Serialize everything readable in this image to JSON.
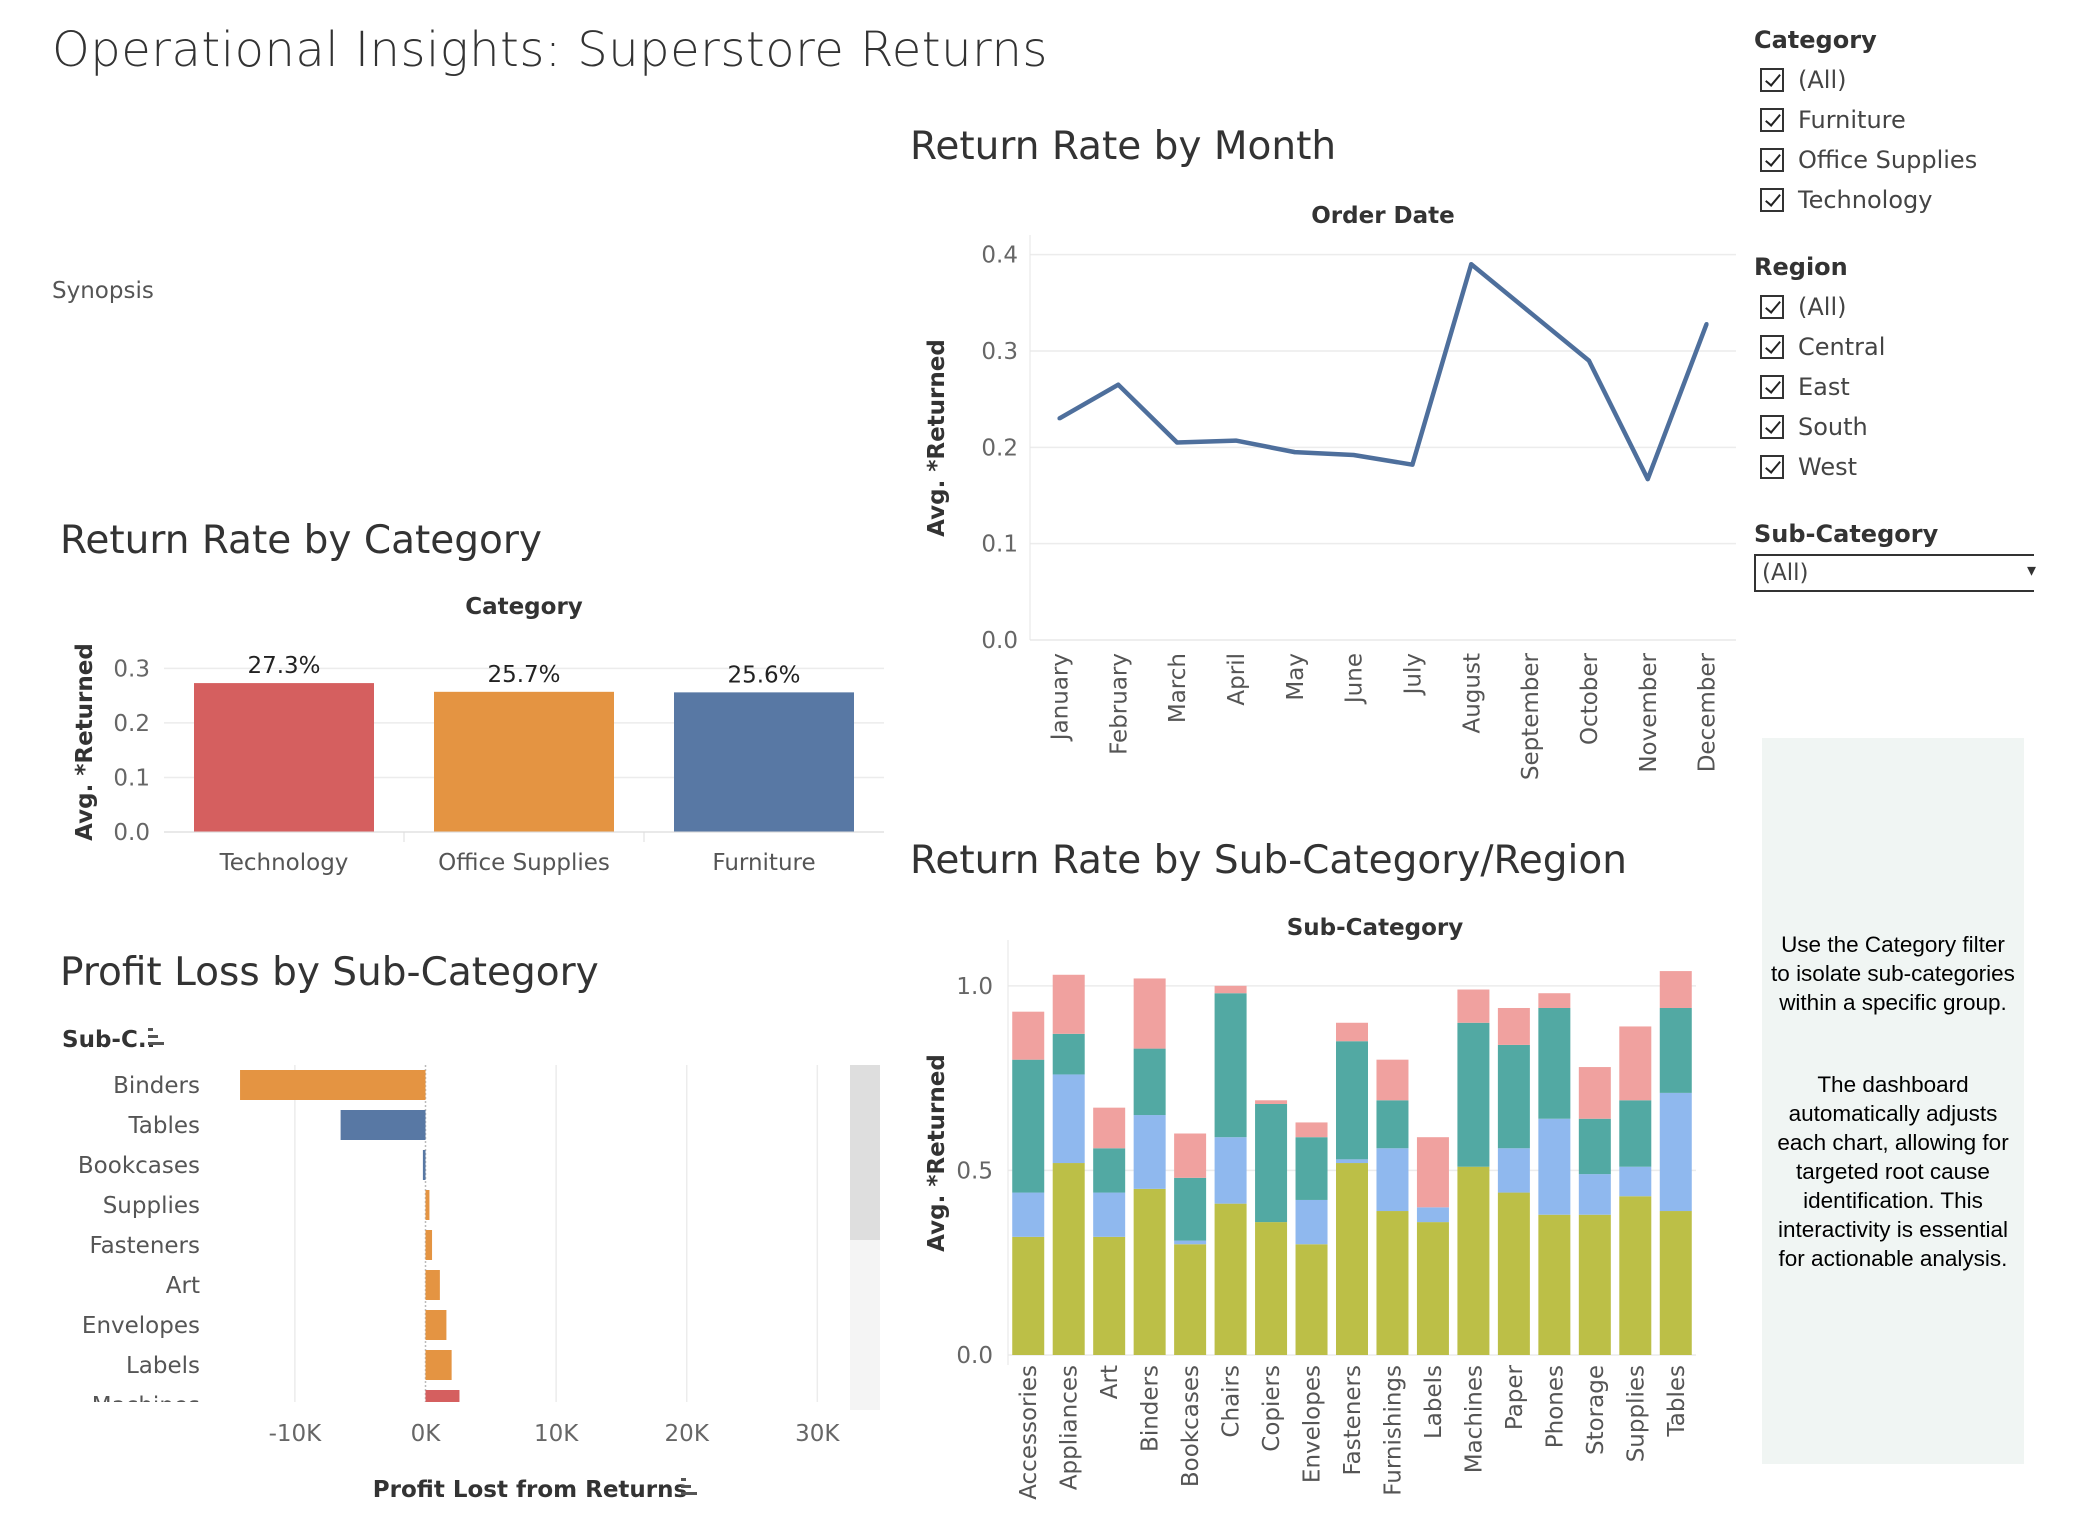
{
  "dashboard": {
    "title": "Operational Insights: Superstore Returns",
    "synopsis_label": "Synopsis"
  },
  "filters": {
    "category": {
      "title": "Category",
      "options": [
        {
          "label": "(All)",
          "checked": true
        },
        {
          "label": "Furniture",
          "checked": true
        },
        {
          "label": "Office Supplies",
          "checked": true
        },
        {
          "label": "Technology",
          "checked": true
        }
      ]
    },
    "region": {
      "title": "Region",
      "options": [
        {
          "label": "(All)",
          "checked": true
        },
        {
          "label": "Central",
          "checked": true
        },
        {
          "label": "East",
          "checked": true
        },
        {
          "label": "South",
          "checked": true
        },
        {
          "label": "West",
          "checked": true
        }
      ]
    },
    "subcategory": {
      "title": "Sub-Category",
      "selected": "(All)"
    }
  },
  "notes": {
    "note1": [
      "Use the Category filter",
      "to isolate sub-categories",
      "within a specific group."
    ],
    "note2": [
      "The dashboard",
      "automatically adjusts",
      "each chart, allowing for",
      "targeted root cause",
      "identification. This",
      "interactivity is essential",
      "for actionable analysis."
    ]
  },
  "icons": {
    "sort": "sort-descending-icon",
    "dropdown": "chevron-down-icon",
    "checkbox": "checkbox-checked-icon"
  },
  "colors": {
    "technology": "#d55f5f",
    "office_supplies": "#e49442",
    "furniture": "#5878a4",
    "region_west": "#bcbf47",
    "region_south": "#8fb8ee",
    "region_east": "#52a9a3",
    "region_central": "#f0a19f",
    "note_bg": "#f0f5f3"
  },
  "chart_data": [
    {
      "id": "category",
      "type": "bar",
      "title": "Return Rate by Category",
      "header": "Category",
      "ylabel": "Avg. *Returned",
      "categories": [
        "Technology",
        "Office Supplies",
        "Furniture"
      ],
      "values": [
        0.273,
        0.257,
        0.256
      ],
      "data_labels": [
        "27.3%",
        "25.7%",
        "25.6%"
      ],
      "yticks": [
        "0.0",
        "0.1",
        "0.2",
        "0.3"
      ],
      "ylim": [
        0,
        0.33
      ],
      "grid": true
    },
    {
      "id": "month",
      "type": "line",
      "title": "Return Rate by Month",
      "header": "Order Date",
      "ylabel": "Avg. *Returned",
      "x": [
        "January",
        "February",
        "March",
        "April",
        "May",
        "June",
        "July",
        "August",
        "September",
        "October",
        "November",
        "December"
      ],
      "values": [
        0.23,
        0.265,
        0.205,
        0.207,
        0.195,
        0.192,
        0.182,
        0.39,
        0.34,
        0.29,
        0.167,
        0.328
      ],
      "yticks": [
        "0.0",
        "0.1",
        "0.2",
        "0.3",
        "0.4"
      ],
      "ylim": [
        0,
        0.41
      ],
      "color": "#4e6f9c",
      "grid": true
    },
    {
      "id": "subcat_region",
      "type": "bar",
      "stacked": true,
      "title": "Return Rate by Sub-Category/Region",
      "header": "Sub-Category",
      "ylabel": "Avg. *Returned",
      "categories": [
        "Accessories",
        "Appliances",
        "Art",
        "Binders",
        "Bookcases",
        "Chairs",
        "Copiers",
        "Envelopes",
        "Fasteners",
        "Furnishings",
        "Labels",
        "Machines",
        "Paper",
        "Phones",
        "Storage",
        "Supplies",
        "Tables"
      ],
      "series": [
        {
          "values": [
            0.32,
            0.52,
            0.32,
            0.45,
            0.3,
            0.41,
            0.36,
            0.3,
            0.52,
            0.39,
            0.36,
            0.51,
            0.44,
            0.38,
            0.38,
            0.43,
            0.39
          ]
        },
        {
          "values": [
            0.12,
            0.24,
            0.12,
            0.2,
            0.01,
            0.18,
            0.0,
            0.12,
            0.01,
            0.17,
            0.04,
            0.0,
            0.12,
            0.26,
            0.11,
            0.08,
            0.32
          ]
        },
        {
          "values": [
            0.36,
            0.11,
            0.12,
            0.18,
            0.17,
            0.39,
            0.32,
            0.17,
            0.32,
            0.13,
            0.0,
            0.39,
            0.28,
            0.3,
            0.15,
            0.18,
            0.23
          ]
        },
        {
          "values": [
            0.13,
            0.16,
            0.11,
            0.19,
            0.12,
            0.02,
            0.01,
            0.04,
            0.05,
            0.11,
            0.19,
            0.09,
            0.1,
            0.04,
            0.14,
            0.2,
            0.1
          ]
        }
      ],
      "yticks": [
        "0.0",
        "0.5",
        "1.0"
      ],
      "ylim": [
        0,
        1.07
      ],
      "grid": true
    },
    {
      "id": "profit_loss",
      "type": "bar",
      "orientation": "horizontal",
      "title": "Profit Loss by Sub-Category",
      "header": "Sub-C..",
      "xlabel": "Profit Lost from Returns",
      "categories": [
        "Binders",
        "Tables",
        "Bookcases",
        "Supplies",
        "Fasteners",
        "Art",
        "Envelopes",
        "Labels",
        "Machines"
      ],
      "values": [
        -14200,
        -6500,
        -200,
        300,
        500,
        1100,
        1600,
        2000,
        2600
      ],
      "bar_category": [
        "Office Supplies",
        "Furniture",
        "Furniture",
        "Office Supplies",
        "Office Supplies",
        "Office Supplies",
        "Office Supplies",
        "Office Supplies",
        "Technology"
      ],
      "xticks": [
        "-10K",
        "0K",
        "10K",
        "20K",
        "30K"
      ],
      "xlim": [
        -16500,
        32500
      ],
      "grid": true
    }
  ]
}
